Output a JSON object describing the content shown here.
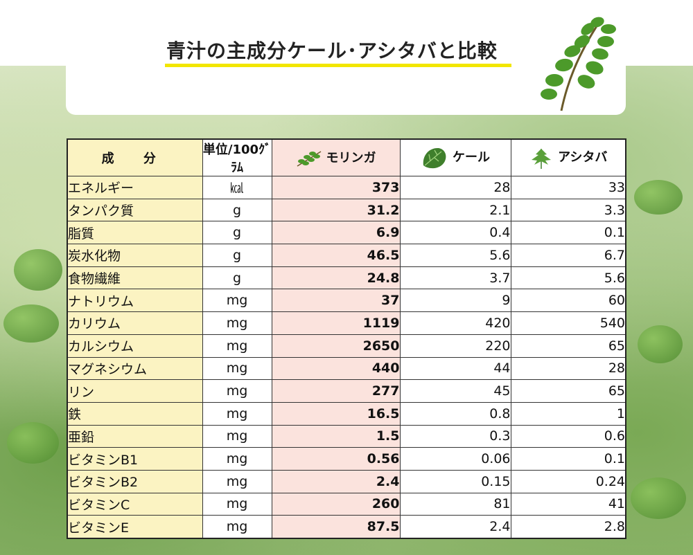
{
  "title": "青汁の主成分ケール･アシタバと比較",
  "table": {
    "headers": {
      "name": "成 分",
      "unit": "単位/100ｸﾞﾗﾑ",
      "moringa": "モリンガ",
      "kale": "ケール",
      "ashitaba": "アシタバ"
    },
    "rows": [
      {
        "name": "エネルギー",
        "unit": "㎉",
        "moringa": "373",
        "kale": "28",
        "ashitaba": "33"
      },
      {
        "name": "タンパク質",
        "unit": "g",
        "moringa": "31.2",
        "kale": "2.1",
        "ashitaba": "3.3"
      },
      {
        "name": "脂質",
        "unit": "g",
        "moringa": "6.9",
        "kale": "0.4",
        "ashitaba": "0.1"
      },
      {
        "name": "炭水化物",
        "unit": "g",
        "moringa": "46.5",
        "kale": "5.6",
        "ashitaba": "6.7"
      },
      {
        "name": "食物繊維",
        "unit": "g",
        "moringa": "24.8",
        "kale": "3.7",
        "ashitaba": "5.6"
      },
      {
        "name": "ナトリウム",
        "unit": "mg",
        "moringa": "37",
        "kale": "9",
        "ashitaba": "60"
      },
      {
        "name": "カリウム",
        "unit": "mg",
        "moringa": "1119",
        "kale": "420",
        "ashitaba": "540"
      },
      {
        "name": "カルシウム",
        "unit": "mg",
        "moringa": "2650",
        "kale": "220",
        "ashitaba": "65"
      },
      {
        "name": "マグネシウム",
        "unit": "mg",
        "moringa": "440",
        "kale": "44",
        "ashitaba": "28"
      },
      {
        "name": "リン",
        "unit": "mg",
        "moringa": "277",
        "kale": "45",
        "ashitaba": "65"
      },
      {
        "name": "鉄",
        "unit": "mg",
        "moringa": "16.5",
        "kale": "0.8",
        "ashitaba": "1"
      },
      {
        "name": "亜鉛",
        "unit": "mg",
        "moringa": "1.5",
        "kale": "0.3",
        "ashitaba": "0.6"
      },
      {
        "name": "ビタミンB1",
        "unit": "mg",
        "moringa": "0.56",
        "kale": "0.06",
        "ashitaba": "0.1"
      },
      {
        "name": "ビタミンB2",
        "unit": "mg",
        "moringa": "2.4",
        "kale": "0.15",
        "ashitaba": "0.24"
      },
      {
        "name": "ビタミンC",
        "unit": "mg",
        "moringa": "260",
        "kale": "81",
        "ashitaba": "41"
      },
      {
        "name": "ビタミンE",
        "unit": "mg",
        "moringa": "87.5",
        "kale": "2.4",
        "ashitaba": "2.8"
      }
    ]
  },
  "colors": {
    "moringa_text": "#e0241b",
    "moringa_bg": "#fbe3dd",
    "name_bg": "#fbf3c2",
    "underline": "#f2e600"
  },
  "icons": {
    "header_branch": "moringa-branch-icon",
    "moringa": "moringa-leaf-icon",
    "kale": "kale-leaf-icon",
    "ashitaba": "ashitaba-leaf-icon"
  }
}
